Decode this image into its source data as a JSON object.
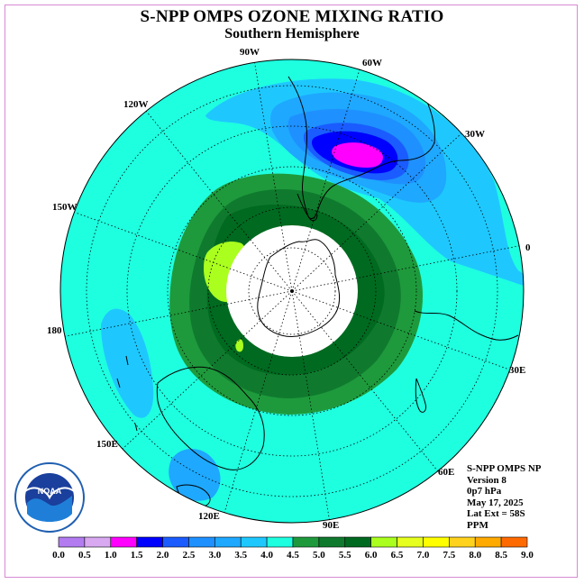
{
  "title": "S-NPP OMPS OZONE MIXING RATIO",
  "subtitle": "Southern Hemisphere",
  "longitude_labels": [
    "90W",
    "60W",
    "120W",
    "30W",
    "150W",
    "0",
    "180",
    "30E",
    "150E",
    "60E",
    "120E",
    "90E"
  ],
  "info": {
    "instrument": "S-NPP OMPS NP",
    "version": "Version 8",
    "pressure": "0p7 hPa",
    "date": "May 17, 2025",
    "lat_ext": "Lat Ext = 58S",
    "units": "PPM"
  },
  "logo_text": "NOAA",
  "colorbar": {
    "labels": [
      "0.0",
      "0.5",
      "1.0",
      "1.5",
      "2.0",
      "2.5",
      "3.0",
      "3.5",
      "4.0",
      "4.5",
      "5.0",
      "5.5",
      "6.0",
      "6.5",
      "7.0",
      "7.5",
      "8.0",
      "8.5",
      "9.0"
    ],
    "colors": [
      "#b27cf0",
      "#d8a8f0",
      "#ff00ff",
      "#0000ff",
      "#1a5cff",
      "#1e90ff",
      "#1ea8ff",
      "#1ec8ff",
      "#1effe0",
      "#1e9a3c",
      "#0f7a2e",
      "#006a20",
      "#aaff1e",
      "#e6ff1e",
      "#ffff00",
      "#ffd21e",
      "#ffaa00",
      "#ff6a00",
      "#ff0000",
      "#8b5a3c"
    ]
  },
  "map_colors": {
    "background": "#1effe0",
    "level_3_5": "#1ec8ff",
    "level_3_0": "#1ea8ff",
    "level_2_5": "#1e90ff",
    "level_2_0": "#1a5cff",
    "level_1_5": "#0000ff",
    "level_1_0": "#ff00ff",
    "level_4_0": "#1e9a3c",
    "level_4_5": "#0f7a2e",
    "level_5_0": "#006a20",
    "level_5_5": "#aaff1e",
    "pole_mask": "#ffffff"
  }
}
